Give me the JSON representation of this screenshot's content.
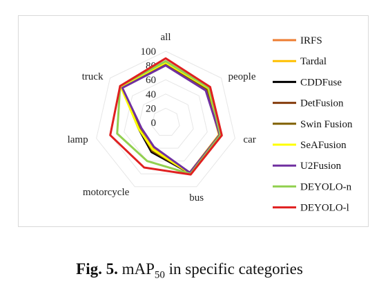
{
  "chart_data": {
    "type": "radar",
    "categories": [
      "all",
      "people",
      "car",
      "bus",
      "motorcycle",
      "lamp",
      "truck"
    ],
    "r_ticks": [
      0,
      20,
      40,
      60,
      80,
      100
    ],
    "rlim": [
      0,
      100
    ],
    "grid": true,
    "legend_position": "right",
    "series": [
      {
        "name": "IRFS",
        "color": "#ed7d31",
        "values": [
          82,
          74,
          77,
          78,
          40,
          37,
          79
        ]
      },
      {
        "name": "Tardal",
        "color": "#ffc000",
        "values": [
          82,
          74,
          77,
          78,
          40,
          37,
          79
        ]
      },
      {
        "name": "CDDFuse",
        "color": "#000000",
        "values": [
          83,
          75,
          78,
          79,
          46,
          39,
          80
        ]
      },
      {
        "name": "DetFusion",
        "color": "#843c0c",
        "values": [
          83,
          75,
          78,
          79,
          44,
          38,
          80
        ]
      },
      {
        "name": "Swin Fusion",
        "color": "#806000",
        "values": [
          83,
          75,
          78,
          79,
          43,
          38,
          80
        ]
      },
      {
        "name": "SeAFusion",
        "color": "#ffff00",
        "values": [
          84,
          77,
          79,
          79,
          42,
          39,
          81
        ]
      },
      {
        "name": "U2Fusion",
        "color": "#7030a0",
        "values": [
          80,
          72,
          78,
          78,
          38,
          35,
          78
        ]
      },
      {
        "name": "DEYOLO-n",
        "color": "#92d050",
        "values": [
          86,
          78,
          79,
          80,
          60,
          70,
          82
        ]
      },
      {
        "name": "DEYOLO-l",
        "color": "#e02020",
        "values": [
          90,
          80,
          81,
          81,
          70,
          80,
          82
        ]
      }
    ]
  },
  "caption": {
    "fig_label": "Fig. 5.",
    "text_before_sub": "mAP",
    "subscript": "50",
    "text_after_sub": "in specific categories"
  }
}
